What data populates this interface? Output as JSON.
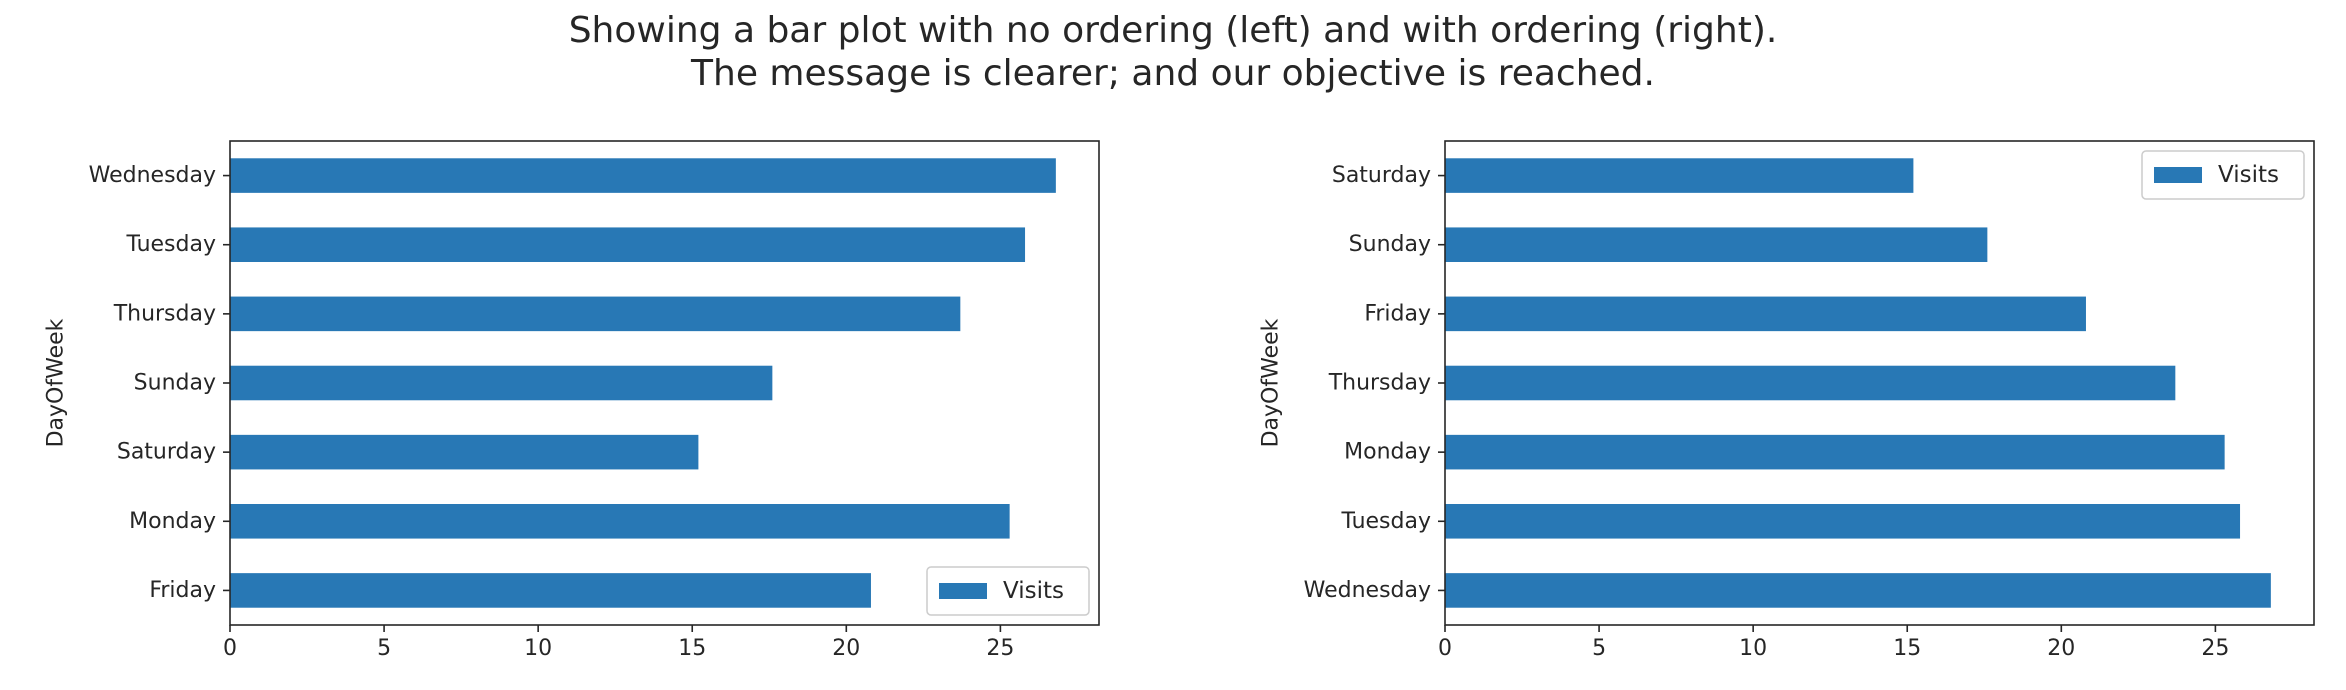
{
  "figure": {
    "title_line1": "Showing a bar plot with no ordering (left) and with ordering (right).",
    "title_line2": "The message is clearer; and our objective is reached."
  },
  "colors": {
    "bar": "#2878b5",
    "axis": "#262626",
    "background": "#ffffff"
  },
  "chart_data": [
    {
      "type": "bar",
      "orientation": "horizontal",
      "title": "",
      "xlabel": "",
      "ylabel": "DayOfWeek",
      "xlim": [
        0,
        28.2
      ],
      "xticks": [
        0,
        5,
        10,
        15,
        20,
        25
      ],
      "categories": [
        "Friday",
        "Monday",
        "Saturday",
        "Sunday",
        "Thursday",
        "Tuesday",
        "Wednesday"
      ],
      "series": [
        {
          "name": "Visits",
          "values": [
            20.8,
            25.3,
            15.2,
            17.6,
            23.7,
            25.8,
            26.8
          ]
        }
      ],
      "legend": {
        "placement": "lower right"
      },
      "grid": false
    },
    {
      "type": "bar",
      "orientation": "horizontal",
      "title": "",
      "xlabel": "",
      "ylabel": "DayOfWeek",
      "xlim": [
        0,
        28.2
      ],
      "xticks": [
        0,
        5,
        10,
        15,
        20,
        25
      ],
      "categories": [
        "Wednesday",
        "Tuesday",
        "Monday",
        "Thursday",
        "Friday",
        "Sunday",
        "Saturday"
      ],
      "series": [
        {
          "name": "Visits",
          "values": [
            26.8,
            25.8,
            25.3,
            23.7,
            20.8,
            17.6,
            15.2
          ]
        }
      ],
      "legend": {
        "placement": "upper right"
      },
      "grid": false
    }
  ]
}
